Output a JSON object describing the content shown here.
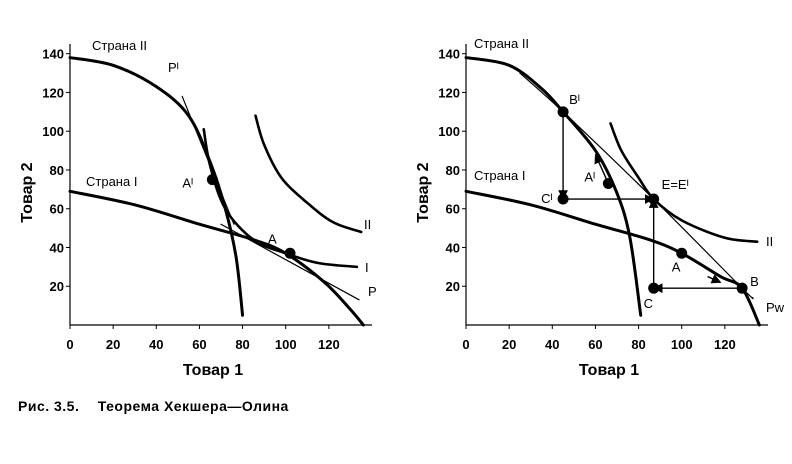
{
  "caption": {
    "number": "Рис.   3.5.",
    "text": "Теорема   Хекшера—Олина"
  },
  "chart_data": [
    {
      "type": "line",
      "panel": "left",
      "xlabel": "Товар 1",
      "ylabel": "Товар 2",
      "xlim": [
        0,
        140
      ],
      "ylim": [
        0,
        145
      ],
      "xticks": [
        "0",
        "20",
        "40",
        "60",
        "80",
        "100",
        "120"
      ],
      "yticks": [
        "20",
        "40",
        "60",
        "80",
        "100",
        "120",
        "140"
      ],
      "series": [
        {
          "name": "Страна II",
          "kind": "ppf",
          "points": [
            [
              0,
              138
            ],
            [
              20,
              134
            ],
            [
              40,
              123
            ],
            [
              55,
              108
            ],
            [
              65,
              84
            ],
            [
              72,
              60
            ],
            [
              77,
              35
            ],
            [
              80,
              5
            ]
          ]
        },
        {
          "name": "Страна I",
          "kind": "ppf",
          "points": [
            [
              0,
              69
            ],
            [
              30,
              62
            ],
            [
              60,
              52
            ],
            [
              85,
              44
            ],
            [
              100,
              37
            ],
            [
              118,
              22
            ],
            [
              130,
              8
            ],
            [
              136,
              0
            ]
          ]
        },
        {
          "name": "I",
          "kind": "indifference",
          "points": [
            [
              62,
              101
            ],
            [
              65,
              82
            ],
            [
              72,
              60
            ],
            [
              85,
              44
            ],
            [
              100,
              37
            ],
            [
              115,
              32
            ],
            [
              133,
              30
            ]
          ]
        },
        {
          "name": "II",
          "kind": "indifference",
          "points": [
            [
              86,
              108
            ],
            [
              90,
              93
            ],
            [
              98,
              76
            ],
            [
              110,
              63
            ],
            [
              122,
              53
            ],
            [
              135,
              48
            ]
          ]
        },
        {
          "name": "Pᴵ",
          "kind": "price",
          "points": [
            [
              52,
              118
            ],
            [
              76,
              52
            ]
          ]
        },
        {
          "name": "P",
          "kind": "price",
          "points": [
            [
              70,
              52
            ],
            [
              134,
              13
            ]
          ]
        }
      ],
      "points": [
        {
          "label": "Aᴵ",
          "x": 66,
          "y": 75
        },
        {
          "label": "A",
          "x": 102,
          "y": 37
        }
      ]
    },
    {
      "type": "line",
      "panel": "right",
      "xlabel": "Товар 1",
      "ylabel": "Товар 2",
      "xlim": [
        0,
        140
      ],
      "ylim": [
        0,
        145
      ],
      "xticks": [
        "0",
        "20",
        "40",
        "60",
        "80",
        "100",
        "120"
      ],
      "yticks": [
        "20",
        "40",
        "60",
        "80",
        "100",
        "120",
        "140"
      ],
      "series": [
        {
          "name": "Страна II",
          "kind": "ppf",
          "points": [
            [
              0,
              138
            ],
            [
              20,
              134
            ],
            [
              35,
              122
            ],
            [
              45,
              110
            ],
            [
              60,
              90
            ],
            [
              70,
              68
            ],
            [
              76,
              45
            ],
            [
              81,
              5
            ]
          ]
        },
        {
          "name": "Страна I",
          "kind": "ppf",
          "points": [
            [
              0,
              69
            ],
            [
              30,
              62
            ],
            [
              60,
              52
            ],
            [
              85,
              44
            ],
            [
              100,
              37
            ],
            [
              118,
              25
            ],
            [
              128,
              19
            ],
            [
              136,
              0
            ]
          ]
        },
        {
          "name": "II",
          "kind": "indifference",
          "points": [
            [
              67,
              104
            ],
            [
              72,
              90
            ],
            [
              80,
              76
            ],
            [
              87,
              65
            ],
            [
              100,
              54
            ],
            [
              120,
              45
            ],
            [
              135,
              43
            ]
          ]
        },
        {
          "name": "Pw",
          "kind": "price",
          "points": [
            [
              25,
              130
            ],
            [
              45,
              110
            ],
            [
              87,
              65
            ],
            [
              128,
              19
            ],
            [
              133,
              14
            ]
          ]
        }
      ],
      "points": [
        {
          "label": "Bᴵ",
          "x": 45,
          "y": 110
        },
        {
          "label": "Cᴵ",
          "x": 45,
          "y": 65
        },
        {
          "label": "Aᴵ",
          "x": 66,
          "y": 73
        },
        {
          "label": "E=Eᴵ",
          "x": 87,
          "y": 65
        },
        {
          "label": "A",
          "x": 100,
          "y": 37
        },
        {
          "label": "B",
          "x": 128,
          "y": 19
        },
        {
          "label": "C",
          "x": 87,
          "y": 19
        }
      ],
      "arrows": [
        {
          "from": [
            45,
            110
          ],
          "to": [
            45,
            65
          ]
        },
        {
          "from": [
            45,
            65
          ],
          "to": [
            87,
            65
          ]
        },
        {
          "from": [
            87,
            19
          ],
          "to": [
            87,
            65
          ]
        },
        {
          "from": [
            128,
            19
          ],
          "to": [
            87,
            19
          ]
        },
        {
          "from": [
            66,
            73
          ],
          "to": [
            60,
            88
          ]
        },
        {
          "from": [
            112,
            25
          ],
          "to": [
            118,
            22
          ]
        }
      ]
    }
  ]
}
